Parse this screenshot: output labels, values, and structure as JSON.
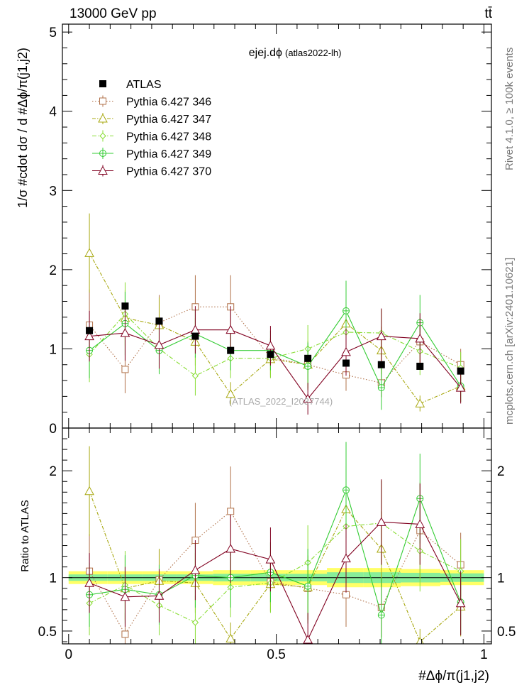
{
  "header": {
    "energy_label": "13000 GeV pp",
    "process_label": "tt̄"
  },
  "side_labels": {
    "rivet": "Rivet 4.1.0, ≥ 100k events",
    "mcplots": "mcplots.cern.ch [arXiv:2401.10621]"
  },
  "chart_data": [
    {
      "type": "scatter",
      "title": "ejej.dϕ",
      "subtitle": "(atlas2022-lh)",
      "watermark": "(ATLAS_2022_I2037744)",
      "ylabel": "1/σ #cdot dσ / d #Δϕ/π(j1,j2)",
      "ylim": [
        0,
        5.1
      ],
      "yticks": [
        "0",
        "1",
        "2",
        "3",
        "4",
        "5"
      ],
      "x": [
        0.05,
        0.136,
        0.218,
        0.305,
        0.39,
        0.486,
        0.576,
        0.668,
        0.753,
        0.846,
        0.944
      ],
      "series": [
        {
          "name": "ATLAS",
          "color": "#000000",
          "marker": "square-filled",
          "dash": "none",
          "values": [
            1.23,
            1.54,
            1.35,
            1.16,
            0.98,
            0.93,
            0.88,
            0.82,
            0.8,
            0.78,
            0.72
          ],
          "err": [
            0.03,
            0.03,
            0.03,
            0.03,
            0.03,
            0.03,
            0.03,
            0.03,
            0.03,
            0.03,
            0.03
          ]
        },
        {
          "name": "Pythia 6.427 346",
          "color": "#b07048",
          "marker": "square-open",
          "dash": "1.5,2.5",
          "values": [
            1.3,
            0.74,
            1.33,
            1.53,
            1.53,
            0.89,
            0.8,
            0.67,
            0.57,
            1.09,
            0.8
          ],
          "err": [
            0.45,
            0.3,
            0.35,
            0.4,
            0.4,
            0.25,
            0.25,
            0.2,
            0.18,
            0.3,
            0.2
          ]
        },
        {
          "name": "Pythia 6.427 347",
          "color": "#a8a810",
          "marker": "triangle-open",
          "dash": "5,2,1.5,2",
          "values": [
            2.21,
            1.39,
            1.3,
            1.09,
            0.43,
            0.87,
            0.8,
            1.32,
            0.98,
            0.31,
            0.53
          ],
          "err": [
            0.5,
            0.35,
            0.35,
            0.3,
            0.15,
            0.2,
            0.3,
            0.3,
            0.3,
            0.1,
            0.2
          ]
        },
        {
          "name": "Pythia 6.427 348",
          "color": "#88dd33",
          "marker": "diamond-open",
          "dash": "6,2.5,1.5,2.5",
          "values": [
            0.93,
            1.44,
            1.0,
            0.66,
            0.88,
            0.88,
            1.0,
            1.21,
            1.2,
            0.97,
            0.76
          ],
          "err": [
            0.35,
            0.4,
            0.3,
            0.25,
            0.25,
            0.25,
            0.3,
            0.3,
            0.3,
            0.3,
            0.2
          ]
        },
        {
          "name": "Pythia 6.427 349",
          "color": "#33cc33",
          "marker": "cross-circle",
          "dash": "none",
          "values": [
            0.98,
            1.32,
            0.98,
            1.19,
            0.98,
            0.98,
            0.78,
            1.48,
            0.51,
            1.33,
            0.53
          ],
          "err": [
            0.35,
            0.4,
            0.3,
            0.3,
            0.25,
            0.25,
            0.3,
            0.38,
            0.28,
            0.35,
            0.2
          ]
        },
        {
          "name": "Pythia 6.427 370",
          "color": "#800020",
          "marker": "triangle-open",
          "dash": "none",
          "values": [
            1.16,
            1.2,
            1.05,
            1.24,
            1.24,
            1.04,
            0.37,
            0.96,
            1.16,
            1.13,
            0.51
          ],
          "err": [
            0.32,
            0.35,
            0.3,
            0.3,
            0.3,
            0.25,
            0.2,
            0.3,
            0.35,
            0.32,
            0.2
          ]
        }
      ]
    },
    {
      "type": "scatter",
      "ylabel": "Ratio to ATLAS",
      "ylim": [
        0.38,
        2.4
      ],
      "yticks": [
        "0.5",
        "1",
        "2"
      ],
      "xlabel": "#Δϕ/π(j1,j2)",
      "xlim": [
        0,
        1
      ],
      "xticks": [
        "0",
        "0.5",
        "1"
      ],
      "bands": {
        "yellow": [
          0.06,
          0.06,
          0.06,
          0.06,
          0.07,
          0.07,
          0.07,
          0.09,
          0.09,
          0.08,
          0.07
        ],
        "green": [
          0.03,
          0.03,
          0.03,
          0.03,
          0.035,
          0.035,
          0.035,
          0.05,
          0.05,
          0.045,
          0.04
        ]
      },
      "series": [
        {
          "name": "Pythia 6.427 346",
          "values": [
            1.06,
            0.47,
            0.98,
            1.35,
            1.62,
            0.96,
            0.9,
            0.84,
            0.72,
            1.44,
            1.12
          ],
          "err": [
            0.35,
            0.2,
            0.28,
            0.35,
            0.42,
            0.28,
            0.3,
            0.3,
            0.28,
            0.45,
            0.3
          ]
        },
        {
          "name": "Pythia 6.427 347",
          "values": [
            1.81,
            0.9,
            0.97,
            0.95,
            0.43,
            0.94,
            0.91,
            1.64,
            1.27,
            0.4,
            0.73
          ],
          "err": [
            0.42,
            0.3,
            0.3,
            0.28,
            0.15,
            0.25,
            0.3,
            0.4,
            0.35,
            0.12,
            0.28
          ]
        },
        {
          "name": "Pythia 6.427 348",
          "values": [
            0.76,
            0.93,
            0.74,
            0.58,
            0.91,
            0.95,
            1.14,
            1.48,
            1.51,
            1.25,
            1.06
          ],
          "err": [
            0.3,
            0.32,
            0.28,
            0.25,
            0.28,
            0.28,
            0.35,
            0.4,
            0.4,
            0.38,
            0.3
          ]
        },
        {
          "name": "Pythia 6.427 349",
          "values": [
            0.84,
            0.89,
            0.84,
            1.02,
            1.0,
            1.05,
            0.92,
            1.82,
            0.65,
            1.74,
            0.77
          ],
          "err": [
            0.3,
            0.32,
            0.28,
            0.3,
            0.28,
            0.28,
            0.35,
            0.45,
            0.35,
            0.42,
            0.3
          ]
        },
        {
          "name": "Pythia 6.427 370",
          "values": [
            0.95,
            0.82,
            0.83,
            1.07,
            1.27,
            1.17,
            0.42,
            1.18,
            1.52,
            1.5,
            0.76
          ],
          "err": [
            0.28,
            0.28,
            0.25,
            0.28,
            0.32,
            0.3,
            0.25,
            0.32,
            0.4,
            0.38,
            0.3
          ]
        }
      ]
    }
  ]
}
